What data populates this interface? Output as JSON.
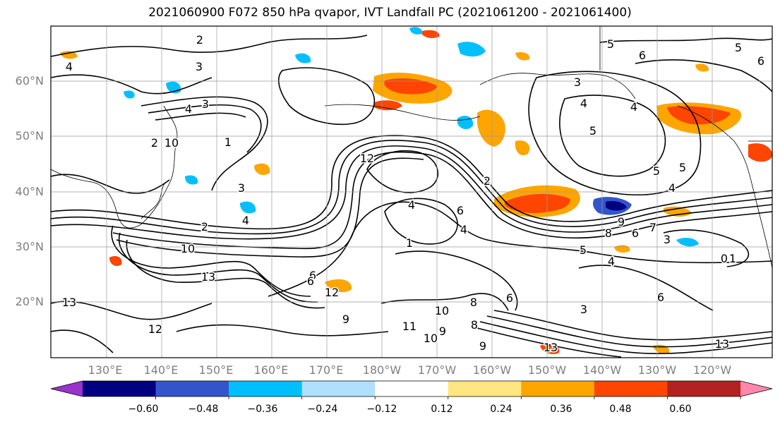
{
  "title": "2021060900 F072 850 hPa qvapor, IVT Landfall PC (2021061200 - 2021061400)",
  "lat_labels": [
    "60°N",
    "50°N",
    "40°N",
    "30°N",
    "20°N"
  ],
  "lon_labels": [
    "130°E",
    "140°E",
    "150°E",
    "160°E",
    "170°E",
    "180°W",
    "170°W",
    "160°W",
    "150°W",
    "140°W",
    "130°W",
    "120°W"
  ],
  "colorbar": {
    "ticks": [
      "−0.60",
      "−0.48",
      "−0.36",
      "−0.24",
      "−0.12",
      "0.12",
      "0.24",
      "0.36",
      "0.48",
      "0.60"
    ],
    "colors": [
      "#9933cc",
      "#000080",
      "#3355cc",
      "#00bfff",
      "#b0e0ff",
      "#ffffff",
      "#ffe680",
      "#ffa500",
      "#ff4500",
      "#b22222",
      "#ff88aa"
    ]
  },
  "contour_labels": [
    "2",
    "3",
    "4",
    "3",
    "4",
    "5",
    "6",
    "5",
    "6",
    "3",
    "4",
    "4",
    "5",
    "5",
    "4",
    "5",
    "4",
    "2",
    "4",
    "2",
    "4",
    "6",
    "8",
    "9",
    "6",
    "7",
    "3",
    "1",
    "0",
    "5",
    "4",
    "10",
    "13",
    "12",
    "12",
    "6",
    "6",
    "9",
    "10",
    "8",
    "6",
    "13",
    "13",
    "13",
    "1",
    "3",
    "2",
    "10",
    "11",
    "10",
    "9",
    "9",
    "8",
    "3",
    "6",
    "1",
    "12"
  ]
}
